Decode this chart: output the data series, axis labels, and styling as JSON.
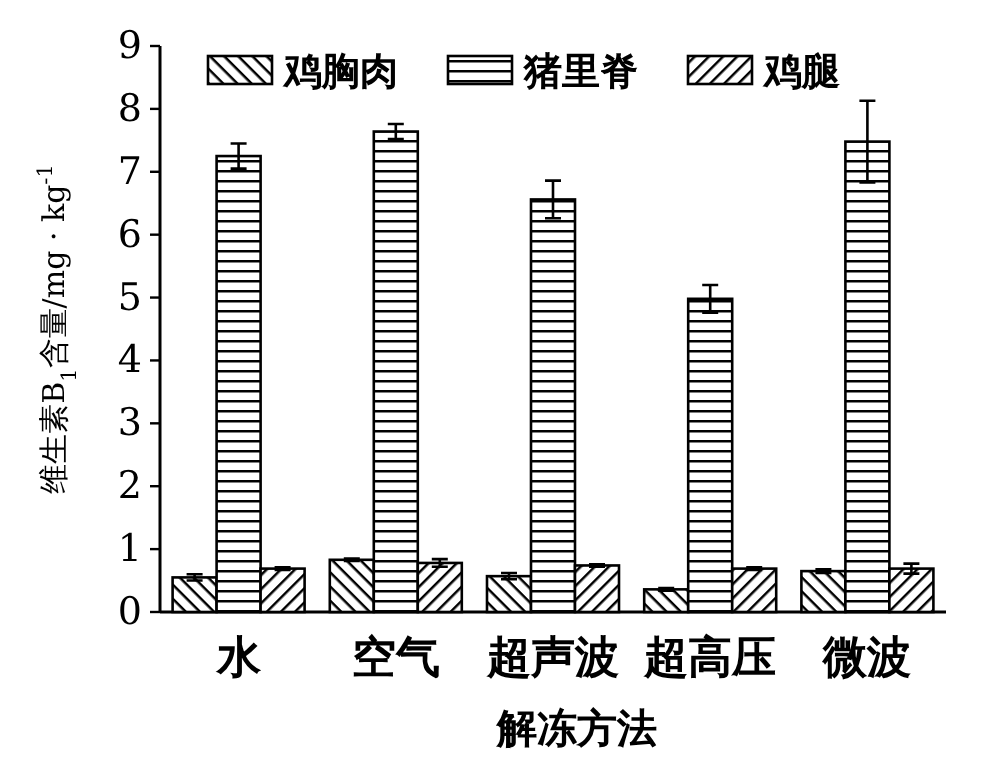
{
  "chart_data": {
    "type": "bar",
    "xlabel": "解冻方法",
    "ylabel": "维生素B$_{1}$含量/mg · kg$^{-1}$",
    "categories": [
      "水",
      "空气",
      "超声波",
      "超高压",
      "微波"
    ],
    "series": [
      {
        "name": "鸡胸肉",
        "color": "#000000",
        "values": [
          0.55,
          0.83,
          0.57,
          0.36,
          0.65
        ],
        "errors": [
          0.05,
          0.02,
          0.05,
          0.02,
          0.03
        ]
      },
      {
        "name": "猪里脊",
        "color": "#000000",
        "values": [
          7.25,
          7.64,
          6.56,
          4.98,
          7.48
        ],
        "errors": [
          0.2,
          0.12,
          0.3,
          0.22,
          0.65
        ]
      },
      {
        "name": "鸡腿",
        "color": "#000000",
        "values": [
          0.69,
          0.78,
          0.74,
          0.69,
          0.69
        ],
        "errors": [
          0.02,
          0.06,
          0.02,
          0.02,
          0.08
        ]
      }
    ],
    "ylim": [
      0,
      9
    ],
    "yticks": [
      0,
      1,
      2,
      3,
      4,
      5,
      6,
      7,
      8,
      9
    ],
    "grid": false,
    "legend": "top"
  }
}
